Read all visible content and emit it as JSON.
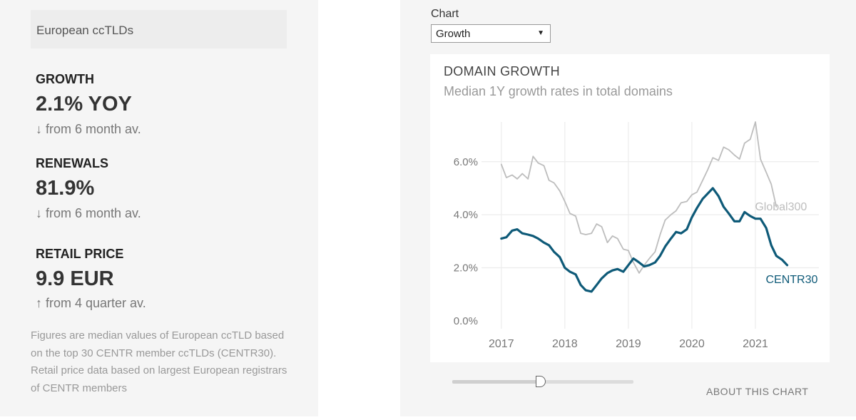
{
  "summary": {
    "region": "European ccTLDs",
    "metrics": [
      {
        "label": "GROWTH",
        "value": "2.1% YOY",
        "trend": "↓ from 6 month av."
      },
      {
        "label": "RENEWALS",
        "value": "81.9%",
        "trend": "↓ from 6 month av."
      },
      {
        "label": "RETAIL PRICE",
        "value": "9.9 EUR",
        "trend": "↑ from 4 quarter av."
      }
    ],
    "footnote": "Figures are median values of European ccTLD based on the top 30 CENTR member ccTLDs (CENTR30). Retail price data based on largest European registrars of CENTR members"
  },
  "controls": {
    "chart_label": "Chart",
    "chart_selected": "Growth",
    "about_label": "ABOUT THIS CHART",
    "slider_value": 0.49
  },
  "chart_data": {
    "type": "line",
    "title": "DOMAIN GROWTH",
    "subtitle": "Median 1Y growth rates in total domains",
    "x_ticks": [
      2017,
      2018,
      2019,
      2020,
      2021
    ],
    "y_ticks": [
      "0.0%",
      "2.0%",
      "4.0%",
      "6.0%"
    ],
    "y_tick_values": [
      0,
      2,
      4,
      6
    ],
    "xlim": [
      2016.8,
      2022.0
    ],
    "ylim": [
      -0.3,
      7.5
    ],
    "grid": true,
    "series": [
      {
        "name": "Global300",
        "color": "#bdbdbd",
        "points": [
          [
            2017.0,
            5.9
          ],
          [
            2017.08,
            5.4
          ],
          [
            2017.17,
            5.5
          ],
          [
            2017.25,
            5.35
          ],
          [
            2017.33,
            5.55
          ],
          [
            2017.42,
            5.35
          ],
          [
            2017.5,
            6.2
          ],
          [
            2017.58,
            5.95
          ],
          [
            2017.67,
            5.85
          ],
          [
            2017.75,
            5.3
          ],
          [
            2017.83,
            5.2
          ],
          [
            2017.92,
            4.9
          ],
          [
            2018.0,
            4.5
          ],
          [
            2018.08,
            4.05
          ],
          [
            2018.17,
            3.95
          ],
          [
            2018.25,
            3.3
          ],
          [
            2018.33,
            3.25
          ],
          [
            2018.42,
            3.3
          ],
          [
            2018.5,
            3.65
          ],
          [
            2018.58,
            3.55
          ],
          [
            2018.67,
            2.95
          ],
          [
            2018.75,
            3.2
          ],
          [
            2018.83,
            3.1
          ],
          [
            2018.92,
            2.7
          ],
          [
            2019.0,
            2.65
          ],
          [
            2019.08,
            2.2
          ],
          [
            2019.17,
            1.8
          ],
          [
            2019.25,
            2.1
          ],
          [
            2019.33,
            2.35
          ],
          [
            2019.42,
            2.6
          ],
          [
            2019.5,
            3.25
          ],
          [
            2019.58,
            3.8
          ],
          [
            2019.67,
            4.0
          ],
          [
            2019.75,
            4.15
          ],
          [
            2019.83,
            4.45
          ],
          [
            2019.92,
            4.5
          ],
          [
            2020.0,
            4.75
          ],
          [
            2020.08,
            4.85
          ],
          [
            2020.17,
            5.3
          ],
          [
            2020.25,
            5.7
          ],
          [
            2020.33,
            6.15
          ],
          [
            2020.42,
            6.05
          ],
          [
            2020.5,
            6.55
          ],
          [
            2020.58,
            6.45
          ],
          [
            2020.67,
            6.25
          ],
          [
            2020.75,
            6.1
          ],
          [
            2020.83,
            6.7
          ],
          [
            2020.92,
            6.85
          ],
          [
            2021.0,
            7.5
          ],
          [
            2021.08,
            6.1
          ],
          [
            2021.17,
            5.6
          ],
          [
            2021.25,
            5.15
          ],
          [
            2021.33,
            4.3
          ]
        ]
      },
      {
        "name": "CENTR30",
        "color": "#0e5a78",
        "points": [
          [
            2017.0,
            3.1
          ],
          [
            2017.08,
            3.15
          ],
          [
            2017.17,
            3.4
          ],
          [
            2017.25,
            3.45
          ],
          [
            2017.33,
            3.3
          ],
          [
            2017.42,
            3.25
          ],
          [
            2017.5,
            3.2
          ],
          [
            2017.58,
            3.1
          ],
          [
            2017.67,
            2.95
          ],
          [
            2017.75,
            2.85
          ],
          [
            2017.83,
            2.6
          ],
          [
            2017.92,
            2.4
          ],
          [
            2018.0,
            2.0
          ],
          [
            2018.08,
            1.85
          ],
          [
            2018.17,
            1.75
          ],
          [
            2018.25,
            1.35
          ],
          [
            2018.33,
            1.15
          ],
          [
            2018.42,
            1.1
          ],
          [
            2018.5,
            1.35
          ],
          [
            2018.58,
            1.6
          ],
          [
            2018.67,
            1.8
          ],
          [
            2018.75,
            1.9
          ],
          [
            2018.83,
            1.95
          ],
          [
            2018.92,
            1.85
          ],
          [
            2019.0,
            2.1
          ],
          [
            2019.08,
            2.35
          ],
          [
            2019.17,
            2.2
          ],
          [
            2019.25,
            2.05
          ],
          [
            2019.33,
            2.1
          ],
          [
            2019.42,
            2.2
          ],
          [
            2019.5,
            2.45
          ],
          [
            2019.58,
            2.8
          ],
          [
            2019.67,
            3.1
          ],
          [
            2019.75,
            3.35
          ],
          [
            2019.83,
            3.3
          ],
          [
            2019.92,
            3.45
          ],
          [
            2020.0,
            3.9
          ],
          [
            2020.08,
            4.25
          ],
          [
            2020.17,
            4.6
          ],
          [
            2020.25,
            4.8
          ],
          [
            2020.33,
            5.0
          ],
          [
            2020.42,
            4.7
          ],
          [
            2020.5,
            4.3
          ],
          [
            2020.58,
            4.05
          ],
          [
            2020.67,
            3.75
          ],
          [
            2020.75,
            3.75
          ],
          [
            2020.83,
            4.1
          ],
          [
            2020.92,
            3.95
          ],
          [
            2021.0,
            3.85
          ],
          [
            2021.08,
            3.85
          ],
          [
            2021.17,
            3.5
          ],
          [
            2021.25,
            2.85
          ],
          [
            2021.33,
            2.45
          ],
          [
            2021.42,
            2.3
          ],
          [
            2021.5,
            2.1
          ]
        ]
      }
    ]
  }
}
